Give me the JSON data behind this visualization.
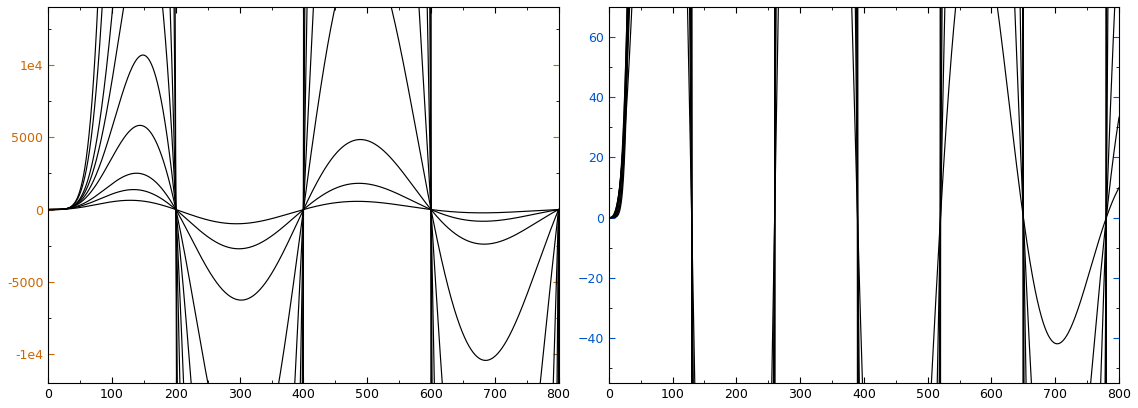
{
  "xlim": [
    0,
    800
  ],
  "ylim_left": [
    -12000,
    14000
  ],
  "ylim_right": [
    -55,
    70
  ],
  "yticks_left": [
    -10000,
    -5000,
    0,
    5000,
    10000
  ],
  "ytick_labels_left": [
    "-1e4",
    "-5000",
    "0",
    "5000",
    "1e4"
  ],
  "yticks_right": [
    -40,
    -20,
    0,
    20,
    40,
    60
  ],
  "xticks": [
    0,
    100,
    200,
    300,
    400,
    500,
    600,
    700,
    800
  ],
  "line_color": "#000000",
  "background_color": "#ffffff",
  "tick_color_left": "#cc6600",
  "tick_color_right": "#0055cc"
}
